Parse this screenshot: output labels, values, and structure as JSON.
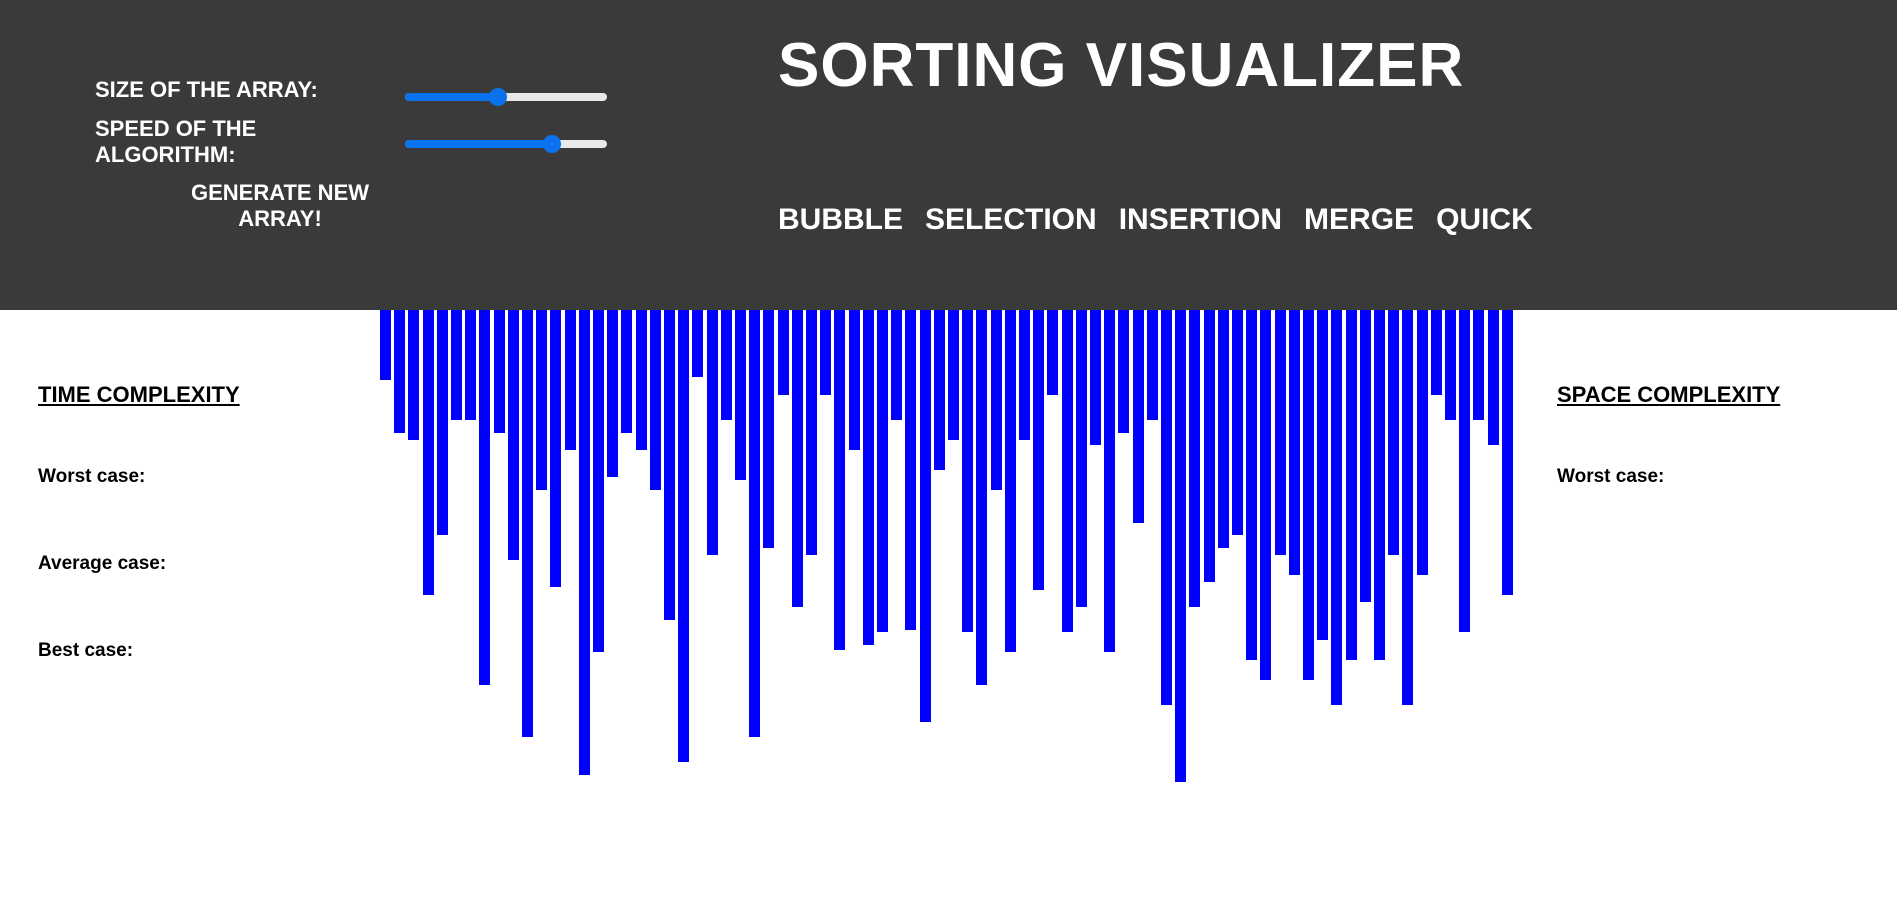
{
  "controls": {
    "size_label": "SIZE OF THE ARRAY:",
    "speed_label_line1": "SPEED OF THE",
    "speed_label_line2": "ALGORITHM:",
    "size_value": 0.46,
    "speed_value": 0.73,
    "generate_line1": "GENERATE NEW",
    "generate_line2": "ARRAY!"
  },
  "header": {
    "title": "SORTING VISUALIZER"
  },
  "algorithms": [
    "BUBBLE",
    "SELECTION",
    "INSERTION",
    "MERGE",
    "QUICK"
  ],
  "time_complexity": {
    "heading": "TIME COMPLEXITY",
    "worst": "Worst case:",
    "average": "Average case:",
    "best": "Best case:"
  },
  "space_complexity": {
    "heading": "SPACE COMPLEXITY",
    "worst": "Worst case:"
  },
  "colors": {
    "header_bg": "#3a3a3a",
    "bar": "#0000ff",
    "slider_accent": "#0b72ee"
  },
  "array_values": [
    70,
    123,
    130,
    285,
    225,
    110,
    110,
    375,
    123,
    250,
    427,
    180,
    277,
    140,
    465,
    342,
    167,
    123,
    140,
    180,
    310,
    452,
    67,
    245,
    110,
    170,
    427,
    238,
    85,
    297,
    245,
    85,
    340,
    140,
    335,
    322,
    110,
    320,
    412,
    160,
    130,
    322,
    375,
    180,
    342,
    130,
    280,
    85,
    322,
    297,
    135,
    342,
    123,
    213,
    110,
    395,
    472,
    297,
    272,
    238,
    225,
    350,
    370,
    245,
    265,
    370,
    330,
    395,
    350,
    292,
    350,
    245,
    395,
    265,
    85,
    110,
    322,
    110,
    135,
    285
  ]
}
